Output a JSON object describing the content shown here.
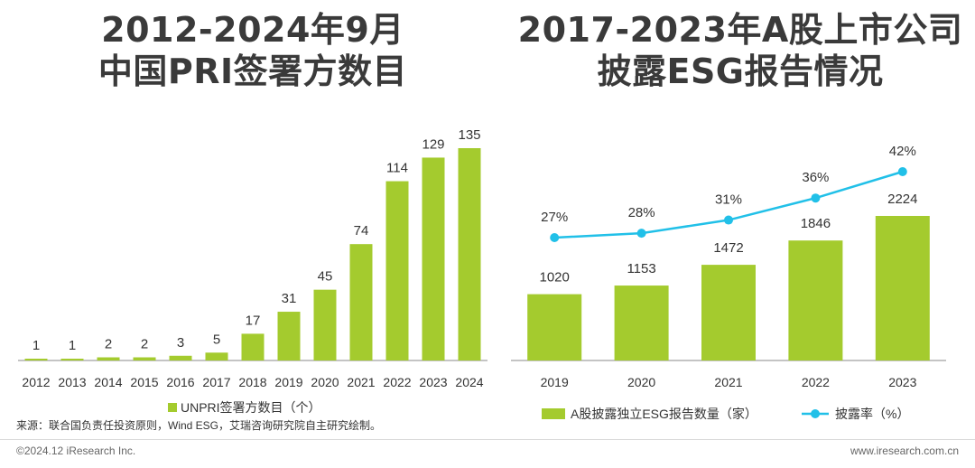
{
  "titles": {
    "left_line1": "2012-2024年9月",
    "left_line2": "中国PRI签署方数目",
    "right_line1": "2017-2023年A股上市公司",
    "right_line2": "披露ESG报告情况"
  },
  "source": "来源：联合国负责任投资原则，Wind ESG，艾瑞咨询研究院自主研究绘制。",
  "footer": {
    "copyright": "©2024.12 iResearch Inc.",
    "website": "www.iresearch.com.cn"
  },
  "colors": {
    "bar": "#a4cb2e",
    "line": "#21c0e8",
    "axis": "#888888"
  },
  "chart_data": [
    {
      "type": "bar",
      "categories": [
        "2012",
        "2013",
        "2014",
        "2015",
        "2016",
        "2017",
        "2018",
        "2019",
        "2020",
        "2021",
        "2022",
        "2023",
        "2024"
      ],
      "series": [
        {
          "name": "UNPRI签署方数目（个）",
          "values": [
            1,
            1,
            2,
            2,
            3,
            5,
            17,
            31,
            45,
            74,
            114,
            129,
            135
          ]
        }
      ],
      "legend": "bottom"
    },
    {
      "type": "bar",
      "categories": [
        "2019",
        "2020",
        "2021",
        "2022",
        "2023"
      ],
      "series": [
        {
          "name": "A股披露独立ESG报告数量（家）",
          "type": "bar",
          "values": [
            1020,
            1153,
            1472,
            1846,
            2224
          ]
        },
        {
          "name": "披露率（%）",
          "type": "line",
          "values": [
            27,
            28,
            31,
            36,
            42
          ],
          "labels": [
            "27%",
            "28%",
            "31%",
            "36%",
            "42%"
          ]
        }
      ],
      "legend": "bottom"
    }
  ]
}
